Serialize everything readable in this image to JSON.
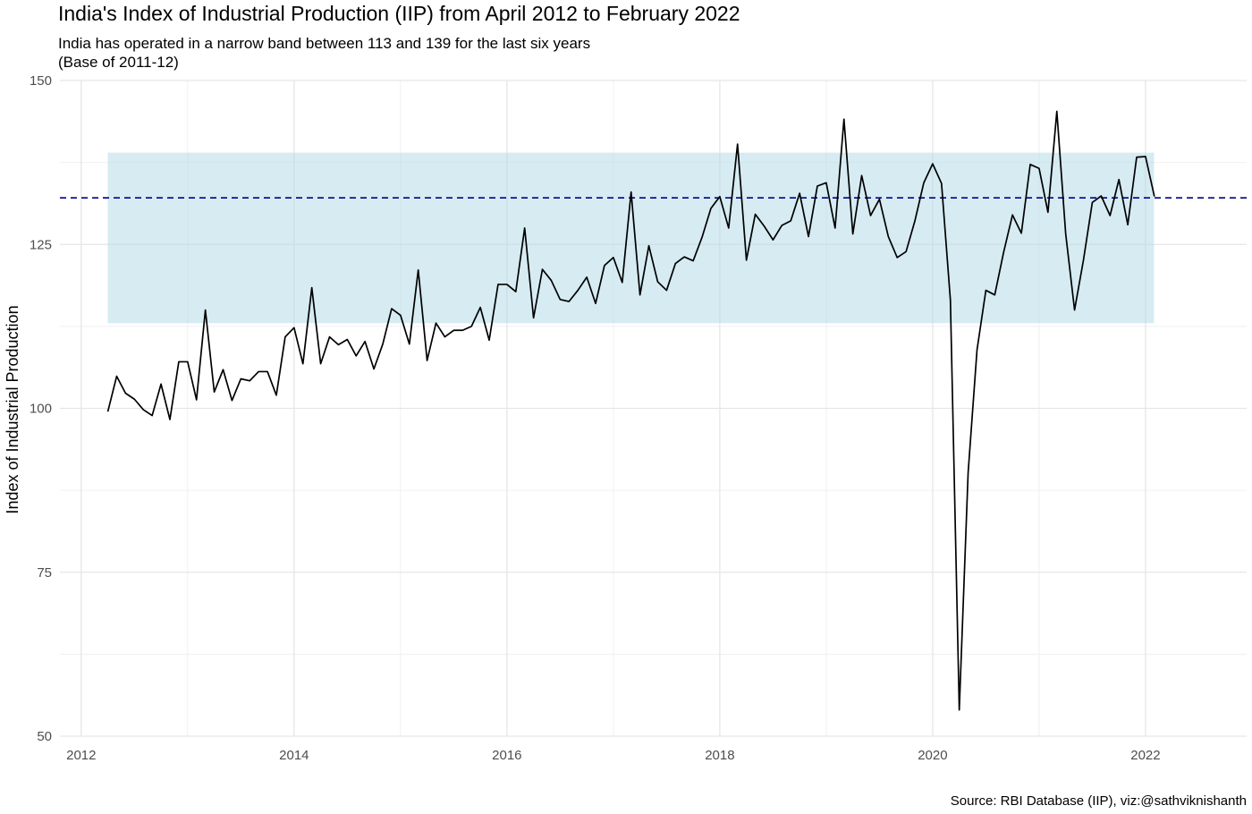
{
  "chart_data": {
    "type": "line",
    "title": "India's Index of Industrial Production (IIP) from April 2012 to February 2022",
    "subtitle_lines": [
      "India has operated in a narrow band between 113 and 139 for the last six years",
      "(Base of 2011-12)"
    ],
    "caption": "Source: RBI Database (IIP), viz:@sathviknishanth",
    "xlabel": "",
    "ylabel": "Index of Industrial Production",
    "xlim": [
      2011.8,
      2022.95
    ],
    "ylim": [
      50,
      150
    ],
    "x_ticks": [
      2012,
      2014,
      2016,
      2018,
      2020,
      2022
    ],
    "x_tick_labels": [
      "2012",
      "2014",
      "2016",
      "2018",
      "2020",
      "2022"
    ],
    "y_ticks": [
      50,
      75,
      100,
      125,
      150
    ],
    "y_tick_labels": [
      "50",
      "75",
      "100",
      "125",
      "150"
    ],
    "grid": true,
    "band": {
      "x_start": 2012.25,
      "x_end": 2022.08,
      "y_min": 113,
      "y_max": 139,
      "color": "#add8e6"
    },
    "reference_line": {
      "y": 132.1,
      "style": "dashed",
      "color": "#00008b"
    },
    "line_color": "#000000",
    "series": [
      {
        "x": [
          "2012-04",
          "2012-05",
          "2012-06",
          "2012-07",
          "2012-08",
          "2012-09",
          "2012-10",
          "2012-11",
          "2012-12",
          "2013-01",
          "2013-02",
          "2013-03",
          "2013-04",
          "2013-05",
          "2013-06",
          "2013-07",
          "2013-08",
          "2013-09",
          "2013-10",
          "2013-11",
          "2013-12",
          "2014-01",
          "2014-02",
          "2014-03",
          "2014-04",
          "2014-05",
          "2014-06",
          "2014-07",
          "2014-08",
          "2014-09",
          "2014-10",
          "2014-11",
          "2014-12",
          "2015-01",
          "2015-02",
          "2015-03",
          "2015-04",
          "2015-05",
          "2015-06",
          "2015-07",
          "2015-08",
          "2015-09",
          "2015-10",
          "2015-11",
          "2015-12",
          "2016-01",
          "2016-02",
          "2016-03",
          "2016-04",
          "2016-05",
          "2016-06",
          "2016-07",
          "2016-08",
          "2016-09",
          "2016-10",
          "2016-11",
          "2016-12",
          "2017-01",
          "2017-02",
          "2017-03",
          "2017-04",
          "2017-05",
          "2017-06",
          "2017-07",
          "2017-08",
          "2017-09",
          "2017-10",
          "2017-11",
          "2017-12",
          "2018-01",
          "2018-02",
          "2018-03",
          "2018-04",
          "2018-05",
          "2018-06",
          "2018-07",
          "2018-08",
          "2018-09",
          "2018-10",
          "2018-11",
          "2018-12",
          "2019-01",
          "2019-02",
          "2019-03",
          "2019-04",
          "2019-05",
          "2019-06",
          "2019-07",
          "2019-08",
          "2019-09",
          "2019-10",
          "2019-11",
          "2019-12",
          "2020-01",
          "2020-02",
          "2020-03",
          "2020-04",
          "2020-05",
          "2020-06",
          "2020-07",
          "2020-08",
          "2020-09",
          "2020-10",
          "2020-11",
          "2020-12",
          "2021-01",
          "2021-02",
          "2021-03",
          "2021-04",
          "2021-05",
          "2021-06",
          "2021-07",
          "2021-08",
          "2021-09",
          "2021-10",
          "2021-11",
          "2021-12",
          "2022-01",
          "2022-02"
        ],
        "values": [
          99.5,
          104.9,
          102.3,
          101.4,
          99.8,
          98.9,
          103.7,
          98.3,
          107.1,
          107.1,
          101.3,
          115.0,
          102.5,
          105.9,
          101.2,
          104.5,
          104.2,
          105.6,
          105.6,
          102.0,
          110.9,
          112.3,
          106.8,
          118.4,
          106.8,
          110.9,
          109.7,
          110.5,
          108.0,
          110.2,
          106.0,
          109.8,
          115.2,
          114.2,
          109.8,
          121.1,
          107.3,
          113.0,
          110.9,
          111.9,
          111.9,
          112.5,
          115.4,
          110.4,
          118.9,
          118.9,
          117.8,
          127.5,
          113.8,
          121.2,
          119.5,
          116.6,
          116.3,
          118.0,
          120.0,
          116.0,
          121.8,
          123.0,
          119.2,
          133.0,
          117.3,
          124.8,
          119.3,
          118.0,
          122.1,
          123.1,
          122.5,
          126.1,
          130.5,
          132.3,
          127.5,
          140.3,
          122.6,
          129.6,
          127.8,
          125.7,
          127.9,
          128.6,
          132.8,
          126.2,
          133.9,
          134.4,
          127.5,
          144.1,
          126.6,
          135.5,
          129.4,
          131.9,
          126.2,
          123.0,
          123.9,
          128.6,
          134.4,
          137.3,
          134.3,
          116.5,
          54.0,
          90.2,
          108.9,
          118.0,
          117.3,
          123.8,
          129.5,
          126.7,
          137.2,
          136.6,
          129.9,
          145.3,
          126.6,
          115.0,
          122.6,
          131.4,
          132.4,
          129.4,
          134.9,
          128.0,
          138.3,
          138.4,
          132.3
        ]
      }
    ]
  }
}
